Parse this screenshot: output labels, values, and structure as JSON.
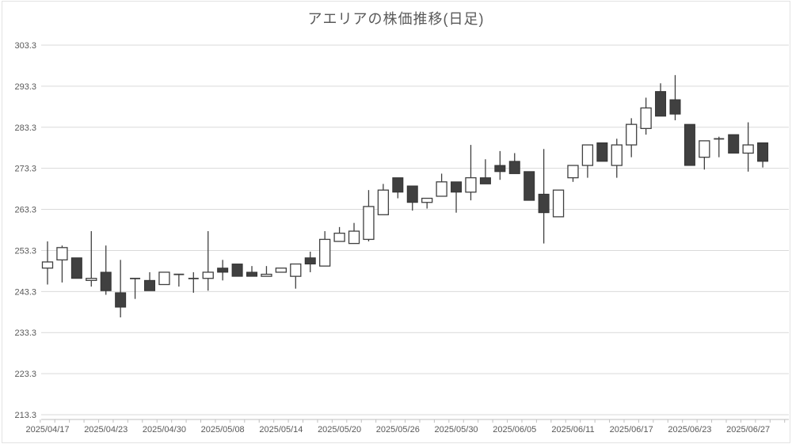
{
  "chart_data": {
    "type": "candlestick",
    "title": "アエリアの株価推移(日足)",
    "y_axis": {
      "min": 213.3,
      "max": 303.3,
      "step": 10,
      "tick_labels": [
        "303.3",
        "293.3",
        "283.3",
        "273.3",
        "263.3",
        "253.3",
        "243.3",
        "233.3",
        "223.3",
        "213.3"
      ]
    },
    "x_axis": {
      "tick_labels": [
        "2025/04/17",
        "2025/04/23",
        "2025/04/30",
        "2025/05/08",
        "2025/05/14",
        "2025/05/20",
        "2025/05/26",
        "2025/05/30",
        "2025/06/05",
        "2025/06/11",
        "2025/06/17",
        "2025/06/23",
        "2025/06/27"
      ],
      "label_every_n_candles": 4
    },
    "grid": "horizontal",
    "legend": "none",
    "colors": {
      "up_fill": "#ffffff",
      "up_border": "#404040",
      "down_fill": "#404040",
      "down_border": "#333333",
      "wick": "#404040",
      "gridline": "#d9d9d9",
      "axis_line": "#bfbfbf",
      "label_text": "#595959",
      "title_text": "#595959"
    },
    "columns": [
      "date",
      "open",
      "high",
      "low",
      "close"
    ],
    "candles": [
      [
        "2025/04/17",
        249.0,
        255.5,
        245.0,
        250.5
      ],
      [
        "2025/04/18",
        251.0,
        254.5,
        245.5,
        254.0
      ],
      [
        "2025/04/21",
        251.5,
        251.5,
        246.5,
        246.5
      ],
      [
        "2025/04/22",
        246.0,
        258.0,
        244.5,
        246.5
      ],
      [
        "2025/04/23",
        248.0,
        254.5,
        242.5,
        243.5
      ],
      [
        "2025/04/24",
        243.0,
        251.0,
        237.0,
        239.5
      ],
      [
        "2025/04/25",
        246.5,
        246.5,
        241.5,
        246.5
      ],
      [
        "2025/04/28",
        246.0,
        248.0,
        243.5,
        243.5
      ],
      [
        "2025/04/30",
        245.0,
        248.0,
        245.0,
        248.0
      ],
      [
        "2025/05/01",
        247.5,
        247.5,
        244.5,
        247.5
      ],
      [
        "2025/05/02",
        246.5,
        248.0,
        243.0,
        246.5
      ],
      [
        "2025/05/07",
        246.5,
        258.0,
        243.5,
        248.0
      ],
      [
        "2025/05/08",
        249.0,
        251.0,
        246.0,
        248.0
      ],
      [
        "2025/05/09",
        250.0,
        250.0,
        247.0,
        247.0
      ],
      [
        "2025/05/12",
        248.0,
        249.5,
        247.0,
        247.0
      ],
      [
        "2025/05/13",
        247.0,
        249.5,
        247.0,
        247.5
      ],
      [
        "2025/05/14",
        248.0,
        249.0,
        248.0,
        249.0
      ],
      [
        "2025/05/15",
        247.0,
        250.0,
        244.0,
        250.0
      ],
      [
        "2025/05/16",
        251.5,
        253.0,
        248.0,
        250.0
      ],
      [
        "2025/05/19",
        249.5,
        258.0,
        249.5,
        256.0
      ],
      [
        "2025/05/20",
        255.5,
        259.0,
        255.5,
        257.5
      ],
      [
        "2025/05/21",
        255.0,
        260.0,
        255.0,
        258.0
      ],
      [
        "2025/05/22",
        256.0,
        268.0,
        255.5,
        264.0
      ],
      [
        "2025/05/23",
        262.0,
        269.5,
        262.0,
        268.0
      ],
      [
        "2025/05/26",
        271.0,
        271.0,
        266.0,
        267.5
      ],
      [
        "2025/05/27",
        269.0,
        269.0,
        263.0,
        265.0
      ],
      [
        "2025/05/28",
        265.0,
        266.0,
        263.5,
        266.0
      ],
      [
        "2025/05/29",
        266.5,
        272.0,
        266.5,
        270.0
      ],
      [
        "2025/05/30",
        270.0,
        270.0,
        262.5,
        267.5
      ],
      [
        "2025/06/02",
        267.5,
        279.0,
        265.5,
        271.0
      ],
      [
        "2025/06/03",
        271.0,
        275.5,
        269.5,
        269.5
      ],
      [
        "2025/06/04",
        274.0,
        277.5,
        270.5,
        272.5
      ],
      [
        "2025/06/05",
        275.0,
        277.0,
        272.0,
        272.0
      ],
      [
        "2025/06/06",
        272.5,
        272.5,
        265.5,
        265.5
      ],
      [
        "2025/06/09",
        267.0,
        278.0,
        255.0,
        262.5
      ],
      [
        "2025/06/10",
        261.5,
        268.0,
        261.5,
        268.0
      ],
      [
        "2025/06/11",
        271.0,
        274.0,
        270.0,
        274.0
      ],
      [
        "2025/06/12",
        274.0,
        279.0,
        271.0,
        279.0
      ],
      [
        "2025/06/13",
        279.5,
        279.5,
        275.0,
        275.0
      ],
      [
        "2025/06/16",
        274.0,
        280.5,
        271.0,
        279.0
      ],
      [
        "2025/06/17",
        279.0,
        285.5,
        276.0,
        284.0
      ],
      [
        "2025/06/18",
        283.0,
        290.5,
        281.5,
        288.0
      ],
      [
        "2025/06/19",
        292.0,
        294.0,
        286.0,
        286.0
      ],
      [
        "2025/06/20",
        290.0,
        296.0,
        285.0,
        286.5
      ],
      [
        "2025/06/23",
        284.0,
        284.0,
        274.0,
        274.0
      ],
      [
        "2025/06/24",
        276.0,
        280.0,
        273.0,
        280.0
      ],
      [
        "2025/06/25",
        280.5,
        281.0,
        276.0,
        280.5
      ],
      [
        "2025/06/26",
        281.5,
        281.5,
        277.0,
        277.0
      ],
      [
        "2025/06/27",
        277.0,
        284.5,
        272.5,
        279.0
      ],
      [
        "2025/06/30",
        279.5,
        279.5,
        273.5,
        275.0
      ]
    ]
  }
}
